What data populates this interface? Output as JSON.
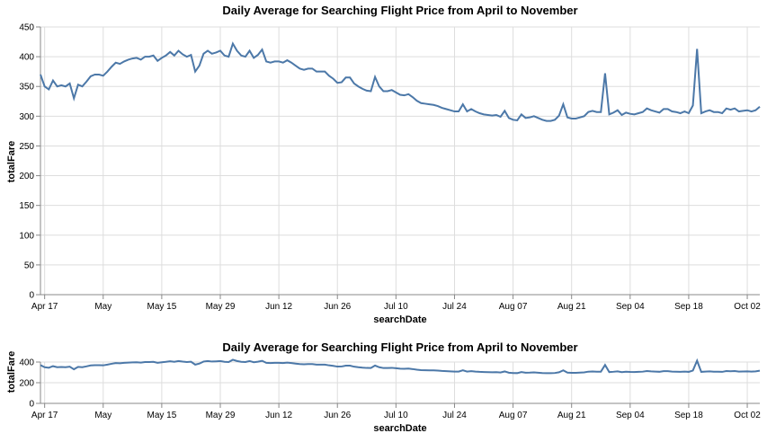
{
  "colors": {
    "line": "#4c78a8",
    "grid": "#dddddd",
    "axis": "#888888",
    "background": "#ffffff"
  },
  "chart_data": [
    {
      "type": "line",
      "title": "Daily Average for Searching Flight Price from April to November",
      "xlabel": "searchDate",
      "ylabel": "totalFare",
      "xlim": [
        "2022-04-16",
        "2022-10-05"
      ],
      "ylim": [
        0,
        450
      ],
      "grid": true,
      "x_ticks": [
        "Apr 17",
        "May",
        "May 15",
        "May 29",
        "Jun 12",
        "Jun 26",
        "Jul 10",
        "Jul 24",
        "Aug 07",
        "Aug 21",
        "Sep 04",
        "Sep 18",
        "Oct 02"
      ],
      "x_tick_dates": [
        "2022-04-17",
        "2022-05-01",
        "2022-05-15",
        "2022-05-29",
        "2022-06-12",
        "2022-06-26",
        "2022-07-10",
        "2022-07-24",
        "2022-08-07",
        "2022-08-21",
        "2022-09-04",
        "2022-09-18",
        "2022-10-02"
      ],
      "y_ticks": [
        0,
        50,
        100,
        150,
        200,
        250,
        300,
        350,
        400,
        450
      ],
      "series": [
        {
          "start_date": "2022-04-16",
          "values": [
            370,
            350,
            345,
            360,
            350,
            352,
            350,
            355,
            330,
            353,
            350,
            358,
            367,
            370,
            370,
            368,
            375,
            383,
            390,
            388,
            392,
            395,
            397,
            398,
            395,
            400,
            400,
            402,
            393,
            398,
            402,
            408,
            402,
            410,
            404,
            400,
            403,
            375,
            385,
            405,
            410,
            405,
            407,
            410,
            402,
            400,
            422,
            410,
            402,
            400,
            410,
            398,
            403,
            412,
            392,
            390,
            392,
            392,
            390,
            394,
            390,
            385,
            380,
            378,
            380,
            380,
            375,
            375,
            375,
            368,
            363,
            356,
            357,
            365,
            365,
            355,
            350,
            346,
            343,
            342,
            366,
            350,
            342,
            342,
            344,
            340,
            336,
            335,
            337,
            332,
            326,
            322,
            321,
            320,
            319,
            317,
            314,
            312,
            310,
            308,
            308,
            320,
            308,
            312,
            308,
            305,
            303,
            302,
            301,
            302,
            299,
            309,
            297,
            294,
            293,
            303,
            297,
            298,
            300,
            297,
            294,
            292,
            292,
            294,
            301,
            320,
            298,
            296,
            296,
            298,
            300,
            307,
            309,
            307,
            307,
            372,
            303,
            306,
            310,
            302,
            306,
            304,
            303,
            305,
            307,
            313,
            310,
            308,
            306,
            312,
            312,
            308,
            307,
            305,
            308,
            305,
            318,
            413,
            305,
            308,
            310,
            307,
            307,
            305,
            313,
            311,
            313,
            308,
            309,
            310,
            308,
            310,
            316
          ]
        }
      ]
    },
    {
      "type": "line",
      "title": "Daily Average for Searching Flight Price from April to November",
      "xlabel": "searchDate",
      "ylabel": "totalFare",
      "xlim": [
        "2022-04-16",
        "2022-10-05"
      ],
      "ylim": [
        0,
        400
      ],
      "grid": true,
      "x_ticks": [
        "Apr 17",
        "May",
        "May 15",
        "May 29",
        "Jun 12",
        "Jun 26",
        "Jul 10",
        "Jul 24",
        "Aug 07",
        "Aug 21",
        "Sep 04",
        "Sep 18",
        "Oct 02"
      ],
      "x_tick_dates": [
        "2022-04-17",
        "2022-05-01",
        "2022-05-15",
        "2022-05-29",
        "2022-06-12",
        "2022-06-26",
        "2022-07-10",
        "2022-07-24",
        "2022-08-07",
        "2022-08-21",
        "2022-09-04",
        "2022-09-18",
        "2022-10-02"
      ],
      "y_ticks": [
        0,
        200,
        400
      ],
      "series": "same as first chart"
    }
  ]
}
